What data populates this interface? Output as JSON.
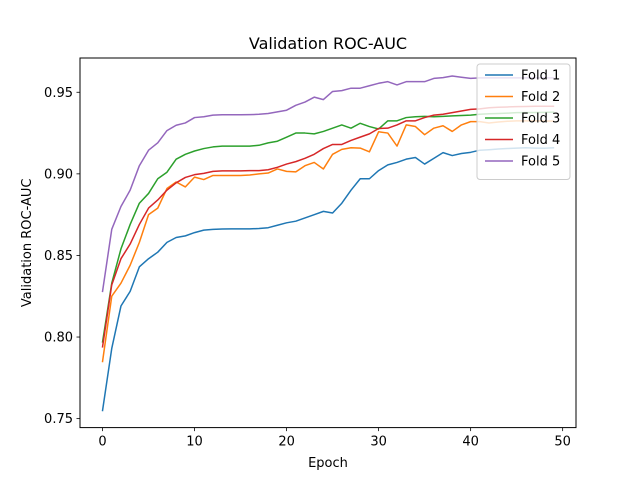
{
  "chart_data": {
    "type": "line",
    "title": "Validation ROC-AUC",
    "xlabel": "Epoch",
    "ylabel": "Validation ROC-AUC",
    "xlim": [
      -2.45,
      51.45
    ],
    "ylim": [
      0.7445,
      0.971
    ],
    "xticks": [
      0,
      10,
      20,
      30,
      40,
      50
    ],
    "xtick_labels": [
      "0",
      "10",
      "20",
      "30",
      "40",
      "50"
    ],
    "yticks": [
      0.75,
      0.8,
      0.85,
      0.9,
      0.95
    ],
    "ytick_labels": [
      "0.75",
      "0.80",
      "0.85",
      "0.90",
      "0.95"
    ],
    "grid": false,
    "legend_position": "top-right",
    "x": [
      0,
      1,
      2,
      3,
      4,
      5,
      6,
      7,
      8,
      9,
      10,
      11,
      12,
      13,
      14,
      15,
      16,
      17,
      18,
      19,
      20,
      21,
      22,
      23,
      24,
      25,
      26,
      27,
      28,
      29,
      30,
      31,
      32,
      33,
      34,
      35,
      36,
      37,
      38,
      39,
      40,
      41,
      42,
      43,
      44,
      45,
      46,
      47,
      48,
      49
    ],
    "series": [
      {
        "name": "Fold 1",
        "color": "#1f77b4",
        "values": [
          0.755,
          0.793,
          0.819,
          0.828,
          0.843,
          0.848,
          0.852,
          0.858,
          0.861,
          0.862,
          0.864,
          0.8655,
          0.866,
          0.8662,
          0.8663,
          0.8663,
          0.8663,
          0.8665,
          0.867,
          0.8685,
          0.87,
          0.871,
          0.873,
          0.875,
          0.877,
          0.876,
          0.882,
          0.89,
          0.897,
          0.897,
          0.902,
          0.9055,
          0.907,
          0.909,
          0.91,
          0.906,
          0.9095,
          0.913,
          0.9112,
          0.9125,
          0.9132,
          0.9145,
          0.9148,
          0.9152,
          0.9155,
          0.9158,
          0.916,
          0.9158,
          0.9157,
          0.916
        ]
      },
      {
        "name": "Fold 2",
        "color": "#ff7f0e",
        "values": [
          0.785,
          0.825,
          0.833,
          0.844,
          0.858,
          0.875,
          0.879,
          0.891,
          0.895,
          0.892,
          0.898,
          0.8965,
          0.899,
          0.899,
          0.899,
          0.899,
          0.8993,
          0.9,
          0.9005,
          0.903,
          0.9015,
          0.9012,
          0.905,
          0.907,
          0.903,
          0.912,
          0.915,
          0.916,
          0.9158,
          0.9135,
          0.9258,
          0.925,
          0.917,
          0.93,
          0.929,
          0.924,
          0.928,
          0.9295,
          0.926,
          0.93,
          0.932,
          0.932,
          0.9312,
          0.9318,
          0.9322,
          0.9325,
          0.9325,
          0.9325,
          0.9324,
          0.9323
        ]
      },
      {
        "name": "Fold 3",
        "color": "#2ca02c",
        "values": [
          0.797,
          0.833,
          0.854,
          0.869,
          0.882,
          0.888,
          0.897,
          0.901,
          0.909,
          0.912,
          0.914,
          0.9155,
          0.9165,
          0.917,
          0.917,
          0.917,
          0.917,
          0.9175,
          0.919,
          0.92,
          0.9225,
          0.925,
          0.925,
          0.9245,
          0.926,
          0.928,
          0.93,
          0.928,
          0.931,
          0.929,
          0.9275,
          0.9325,
          0.9325,
          0.9345,
          0.935,
          0.9352,
          0.935,
          0.9352,
          0.9355,
          0.9358,
          0.936,
          0.9365,
          0.9368,
          0.937,
          0.9372,
          0.9375,
          0.9375,
          0.9376,
          0.9377,
          0.9378
        ]
      },
      {
        "name": "Fold 4",
        "color": "#d62728",
        "values": [
          0.794,
          0.832,
          0.848,
          0.857,
          0.869,
          0.879,
          0.884,
          0.89,
          0.8945,
          0.8978,
          0.8995,
          0.9003,
          0.9015,
          0.9018,
          0.9018,
          0.9018,
          0.902,
          0.902,
          0.9025,
          0.904,
          0.906,
          0.9075,
          0.9095,
          0.912,
          0.9155,
          0.918,
          0.918,
          0.9205,
          0.9225,
          0.9245,
          0.9278,
          0.928,
          0.93,
          0.9325,
          0.9325,
          0.9345,
          0.936,
          0.9365,
          0.9375,
          0.9385,
          0.9395,
          0.9398,
          0.9405,
          0.9408,
          0.941,
          0.9412,
          0.9413,
          0.9414,
          0.9414,
          0.9414
        ]
      },
      {
        "name": "Fold 5",
        "color": "#9467bd",
        "values": [
          0.828,
          0.866,
          0.88,
          0.89,
          0.905,
          0.9145,
          0.919,
          0.9265,
          0.9298,
          0.9312,
          0.9345,
          0.935,
          0.936,
          0.9362,
          0.9362,
          0.9362,
          0.9363,
          0.9365,
          0.937,
          0.938,
          0.939,
          0.942,
          0.944,
          0.947,
          0.9455,
          0.9505,
          0.951,
          0.9525,
          0.9525,
          0.954,
          0.9555,
          0.9565,
          0.9545,
          0.9565,
          0.9565,
          0.9565,
          0.9585,
          0.959,
          0.96,
          0.9592,
          0.9585,
          0.9588,
          0.9588,
          0.9588,
          0.9588,
          0.9588,
          0.9588,
          0.9588,
          0.9588,
          0.9588
        ]
      }
    ]
  }
}
